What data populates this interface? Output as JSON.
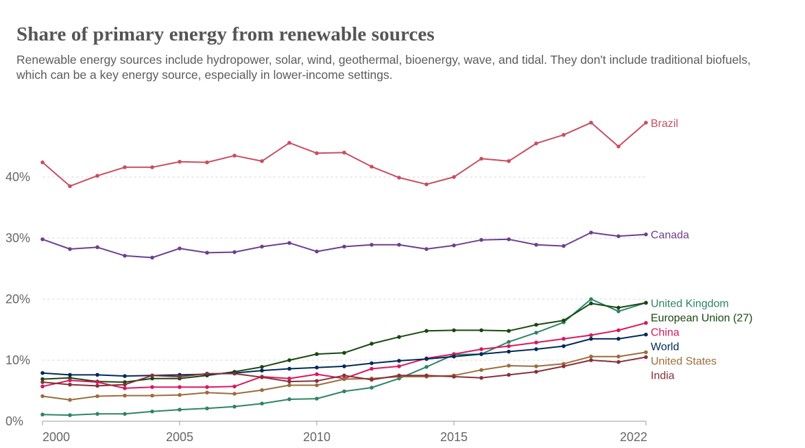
{
  "header": {
    "title": "Share of primary energy from renewable sources",
    "subtitle": "Renewable energy sources include hydropower, solar, wind, geothermal, bioenergy, wave, and tidal. They don't include traditional biofuels, which can be a key energy source, especially in lower-income settings."
  },
  "chart_data": {
    "type": "line",
    "title": "Share of primary energy from renewable sources",
    "xlabel": "",
    "ylabel": "",
    "x": [
      2000,
      2001,
      2002,
      2003,
      2004,
      2005,
      2006,
      2007,
      2008,
      2009,
      2010,
      2011,
      2012,
      2013,
      2014,
      2015,
      2016,
      2017,
      2018,
      2019,
      2020,
      2021,
      2022
    ],
    "xlim": [
      2000,
      2022
    ],
    "ylim": [
      0,
      50
    ],
    "x_ticks": [
      {
        "value": 2000,
        "label": "2000"
      },
      {
        "value": 2005,
        "label": "2005"
      },
      {
        "value": 2010,
        "label": "2010"
      },
      {
        "value": 2015,
        "label": "2015"
      },
      {
        "value": 2022,
        "label": "2022"
      }
    ],
    "y_ticks": [
      {
        "value": 0,
        "label": "0%"
      },
      {
        "value": 10,
        "label": "10%"
      },
      {
        "value": 20,
        "label": "20%"
      },
      {
        "value": 30,
        "label": "30%"
      },
      {
        "value": 40,
        "label": "40%"
      }
    ],
    "grid": "horizontal dashed",
    "series": [
      {
        "name": "Brazil",
        "color": "#c94d60",
        "values": [
          42.4,
          38.5,
          40.2,
          41.6,
          41.6,
          42.5,
          42.4,
          43.5,
          42.6,
          45.6,
          43.9,
          44.0,
          41.7,
          39.9,
          38.8,
          40.0,
          43.0,
          42.6,
          45.5,
          46.9,
          48.9,
          45.0,
          48.9
        ]
      },
      {
        "name": "Canada",
        "color": "#6d3e91",
        "values": [
          29.8,
          28.2,
          28.5,
          27.1,
          26.8,
          28.3,
          27.6,
          27.7,
          28.6,
          29.2,
          27.8,
          28.6,
          28.9,
          28.9,
          28.2,
          28.8,
          29.7,
          29.8,
          28.9,
          28.7,
          30.9,
          30.3,
          30.6
        ]
      },
      {
        "name": "United Kingdom",
        "color": "#2c8465",
        "values": [
          1.1,
          1.0,
          1.2,
          1.2,
          1.6,
          1.9,
          2.1,
          2.4,
          2.9,
          3.6,
          3.7,
          4.9,
          5.5,
          7.0,
          8.9,
          10.9,
          11.0,
          13.0,
          14.5,
          16.2,
          20.0,
          18.0,
          19.4
        ]
      },
      {
        "name": "European Union (27)",
        "color": "#18470f",
        "values": [
          6.9,
          7.1,
          6.5,
          6.4,
          7.0,
          7.0,
          7.5,
          8.1,
          8.9,
          10.0,
          11.0,
          11.2,
          12.7,
          13.8,
          14.8,
          14.9,
          14.9,
          14.8,
          15.8,
          16.5,
          19.3,
          18.6,
          19.4
        ]
      },
      {
        "name": "China",
        "color": "#d9185f",
        "values": [
          5.7,
          6.7,
          6.4,
          5.4,
          5.6,
          5.6,
          5.6,
          5.7,
          7.3,
          7.0,
          7.7,
          7.0,
          8.6,
          9.0,
          10.3,
          11.0,
          11.8,
          12.3,
          12.9,
          13.5,
          14.1,
          14.9,
          16.1
        ]
      },
      {
        "name": "World",
        "color": "#00295b",
        "values": [
          7.9,
          7.6,
          7.6,
          7.4,
          7.5,
          7.6,
          7.7,
          7.9,
          8.3,
          8.6,
          8.8,
          9.0,
          9.5,
          9.9,
          10.2,
          10.6,
          11.0,
          11.4,
          11.8,
          12.3,
          13.5,
          13.5,
          14.2
        ]
      },
      {
        "name": "United States",
        "color": "#9a6d3b",
        "values": [
          4.1,
          3.5,
          4.1,
          4.2,
          4.2,
          4.3,
          4.7,
          4.5,
          5.1,
          5.9,
          5.9,
          6.9,
          7.0,
          7.3,
          7.3,
          7.5,
          8.4,
          9.1,
          9.0,
          9.4,
          10.6,
          10.6,
          11.3
        ]
      },
      {
        "name": "India",
        "color": "#883039",
        "values": [
          6.4,
          6.0,
          5.8,
          6.0,
          7.5,
          7.3,
          7.8,
          7.8,
          7.2,
          6.5,
          6.6,
          7.5,
          6.8,
          7.5,
          7.5,
          7.3,
          7.1,
          7.6,
          8.1,
          9.0,
          10.0,
          9.7,
          10.5
        ]
      }
    ]
  }
}
